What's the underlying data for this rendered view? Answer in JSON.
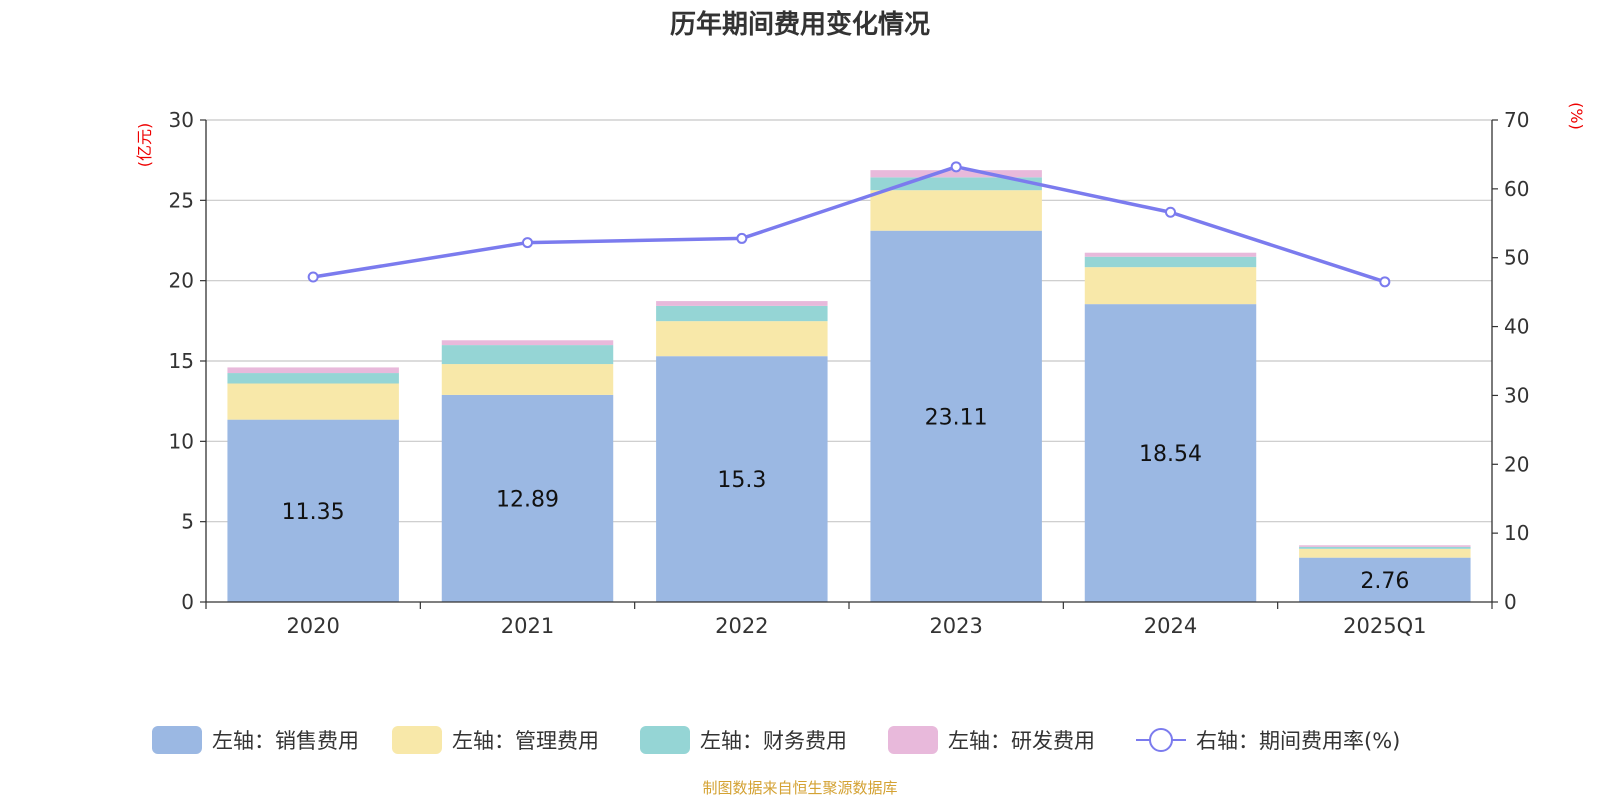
{
  "colors": {
    "sales": "#9bb8e3",
    "admin": "#f8e8a9",
    "finance": "#95d5d5",
    "rnd": "#e8b9db",
    "rate": "#7b7bee",
    "unit": "#ee0000",
    "source": "#d4a233"
  },
  "chart_data": {
    "type": "bar",
    "title": "历年期间费用变化情况",
    "categories": [
      "2020",
      "2021",
      "2022",
      "2023",
      "2024",
      "2025Q1"
    ],
    "left_axis": {
      "unit": "(亿元)",
      "range": [
        0,
        30
      ],
      "ticks": [
        "0",
        "5",
        "10",
        "15",
        "20",
        "25",
        "30"
      ]
    },
    "right_axis": {
      "unit": "(%)",
      "range": [
        0,
        70
      ],
      "ticks": [
        "0",
        "10",
        "20",
        "30",
        "40",
        "50",
        "60",
        "70"
      ]
    },
    "series": [
      {
        "key": "sales",
        "name": "左轴：销售费用",
        "type": "bar",
        "axis": "left",
        "values": [
          11.35,
          12.89,
          15.3,
          23.11,
          18.54,
          2.76
        ],
        "labels": [
          "11.35",
          "12.89",
          "15.3",
          "23.11",
          "18.54",
          "2.76"
        ]
      },
      {
        "key": "admin",
        "name": "左轴：管理费用",
        "type": "bar",
        "axis": "left",
        "values": [
          2.25,
          1.92,
          2.18,
          2.52,
          2.3,
          0.55
        ]
      },
      {
        "key": "finance",
        "name": "左轴：财务费用",
        "type": "bar",
        "axis": "left",
        "values": [
          0.65,
          1.18,
          0.95,
          0.8,
          0.65,
          0.12
        ]
      },
      {
        "key": "rnd",
        "name": "左轴：研发费用",
        "type": "bar",
        "axis": "left",
        "values": [
          0.35,
          0.3,
          0.3,
          0.45,
          0.25,
          0.1
        ]
      },
      {
        "key": "rate",
        "name": "右轴：期间费用率(%)",
        "type": "line",
        "axis": "right",
        "values": [
          47.2,
          52.2,
          52.8,
          63.2,
          56.6,
          46.5
        ]
      }
    ],
    "source": "制图数据来自恒生聚源数据库"
  }
}
